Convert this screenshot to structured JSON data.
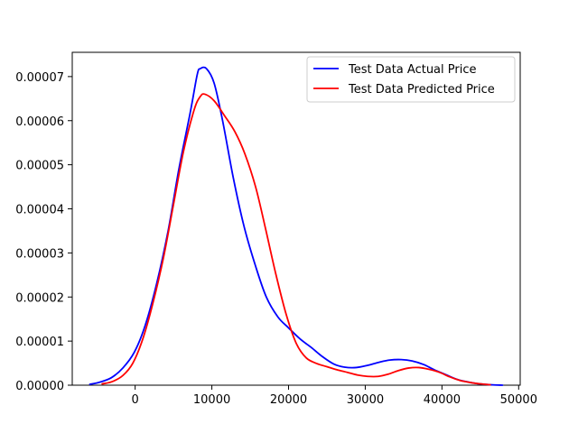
{
  "chart_data": {
    "type": "line",
    "title": "",
    "xlabel": "",
    "ylabel": "",
    "xlim": [
      -8200,
      50200
    ],
    "ylim": [
      0,
      7.55e-05
    ],
    "grid": false,
    "legend_position": "top-right",
    "xticks": [
      {
        "value": 0,
        "label": "0"
      },
      {
        "value": 10000,
        "label": "10000"
      },
      {
        "value": 20000,
        "label": "20000"
      },
      {
        "value": 30000,
        "label": "30000"
      },
      {
        "value": 40000,
        "label": "40000"
      },
      {
        "value": 50000,
        "label": "50000"
      }
    ],
    "yticks": [
      {
        "value": 0,
        "label": "0.00000"
      },
      {
        "value": 1e-05,
        "label": "0.00001"
      },
      {
        "value": 2e-05,
        "label": "0.00002"
      },
      {
        "value": 3e-05,
        "label": "0.00003"
      },
      {
        "value": 4e-05,
        "label": "0.00004"
      },
      {
        "value": 5e-05,
        "label": "0.00005"
      },
      {
        "value": 6e-05,
        "label": "0.00006"
      },
      {
        "value": 7e-05,
        "label": "0.00007"
      }
    ],
    "series": [
      {
        "name": "Test Data Actual Price",
        "color": "#0000ff",
        "points": [
          [
            -5900,
            2e-07
          ],
          [
            -4600,
            7e-07
          ],
          [
            -3100,
            1.7e-06
          ],
          [
            -1600,
            3.9e-06
          ],
          [
            -100,
            7.5e-06
          ],
          [
            1300,
            1.35e-05
          ],
          [
            2800,
            2.3e-05
          ],
          [
            4300,
            3.5e-05
          ],
          [
            5700,
            4.9e-05
          ],
          [
            7200,
            6.2e-05
          ],
          [
            8100,
            7.05e-05
          ],
          [
            8500,
            7.18e-05
          ],
          [
            9300,
            7.18e-05
          ],
          [
            10300,
            6.85e-05
          ],
          [
            11400,
            6e-05
          ],
          [
            12800,
            4.7e-05
          ],
          [
            14200,
            3.6e-05
          ],
          [
            15700,
            2.7e-05
          ],
          [
            17100,
            2e-05
          ],
          [
            18600,
            1.55e-05
          ],
          [
            20000,
            1.3e-05
          ],
          [
            21500,
            1.05e-05
          ],
          [
            23000,
            8.5e-06
          ],
          [
            24400,
            6.5e-06
          ],
          [
            25900,
            4.8e-06
          ],
          [
            27300,
            4.1e-06
          ],
          [
            28800,
            4e-06
          ],
          [
            30300,
            4.5e-06
          ],
          [
            31800,
            5.2e-06
          ],
          [
            33200,
            5.7e-06
          ],
          [
            34700,
            5.8e-06
          ],
          [
            36100,
            5.5e-06
          ],
          [
            37600,
            4.7e-06
          ],
          [
            39000,
            3.5e-06
          ],
          [
            40500,
            2.4e-06
          ],
          [
            42000,
            1.3e-06
          ],
          [
            43500,
            7e-07
          ],
          [
            44900,
            3e-07
          ],
          [
            46400,
            1e-07
          ],
          [
            47900,
            0.0
          ]
        ]
      },
      {
        "name": "Test Data Predicted Price",
        "color": "#ff0000",
        "points": [
          [
            -4300,
            3e-07
          ],
          [
            -3000,
            8e-07
          ],
          [
            -1600,
            2.2e-06
          ],
          [
            -300,
            5e-06
          ],
          [
            1000,
            1.05e-05
          ],
          [
            2300,
            1.85e-05
          ],
          [
            3700,
            2.9e-05
          ],
          [
            5000,
            4.1e-05
          ],
          [
            6300,
            5.3e-05
          ],
          [
            7700,
            6.25e-05
          ],
          [
            8500,
            6.55e-05
          ],
          [
            9100,
            6.6e-05
          ],
          [
            10300,
            6.45e-05
          ],
          [
            11700,
            6.1e-05
          ],
          [
            13000,
            5.75e-05
          ],
          [
            14300,
            5.25e-05
          ],
          [
            15700,
            4.5e-05
          ],
          [
            17000,
            3.55e-05
          ],
          [
            18300,
            2.55e-05
          ],
          [
            19700,
            1.6e-05
          ],
          [
            21000,
            9.5e-06
          ],
          [
            22300,
            6.2e-06
          ],
          [
            23700,
            4.9e-06
          ],
          [
            25000,
            4.2e-06
          ],
          [
            26300,
            3.5e-06
          ],
          [
            27700,
            2.9e-06
          ],
          [
            29000,
            2.3e-06
          ],
          [
            30300,
            2e-06
          ],
          [
            31700,
            2e-06
          ],
          [
            33000,
            2.5e-06
          ],
          [
            34300,
            3.3e-06
          ],
          [
            35700,
            3.9e-06
          ],
          [
            37000,
            4e-06
          ],
          [
            38300,
            3.6e-06
          ],
          [
            39700,
            2.9e-06
          ],
          [
            41000,
            1.9e-06
          ],
          [
            42300,
            1.1e-06
          ],
          [
            43700,
            6e-07
          ],
          [
            45000,
            3e-07
          ],
          [
            46300,
            1e-07
          ]
        ]
      }
    ]
  }
}
